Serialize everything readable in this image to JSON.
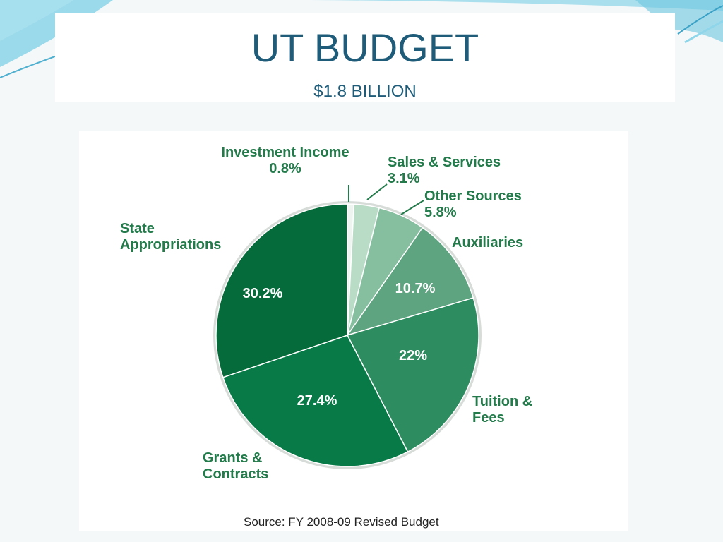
{
  "slide": {
    "title": "UT BUDGET",
    "subtitle": "$1.8 BILLION"
  },
  "chart_data": {
    "type": "pie",
    "unit": "%",
    "source": "Source: FY 2008-09 Revised Budget",
    "slices": [
      {
        "label": "Investment Income",
        "value": 0.8,
        "value_text": "0.8%",
        "color": "#eef5f0"
      },
      {
        "label": "Sales & Services",
        "value": 3.1,
        "value_text": "3.1%",
        "color": "#b9dcc6"
      },
      {
        "label": "Other Sources",
        "value": 5.8,
        "value_text": "5.8%",
        "color": "#86bea0"
      },
      {
        "label": "Auxiliaries",
        "value": 10.7,
        "value_text": "10.7%",
        "color": "#5ea481"
      },
      {
        "label": "Tuition & Fees",
        "value": 22,
        "value_text": "22%",
        "color": "#2e8c61"
      },
      {
        "label": "Grants & Contracts",
        "value": 27.4,
        "value_text": "27.4%",
        "color": "#087a48"
      },
      {
        "label": "State Appropriations",
        "value": 30.2,
        "value_text": "30.2%",
        "color": "#056b3a"
      }
    ],
    "colors": {
      "label_text": "#237a4a",
      "title_text": "#1e5c7a"
    }
  }
}
